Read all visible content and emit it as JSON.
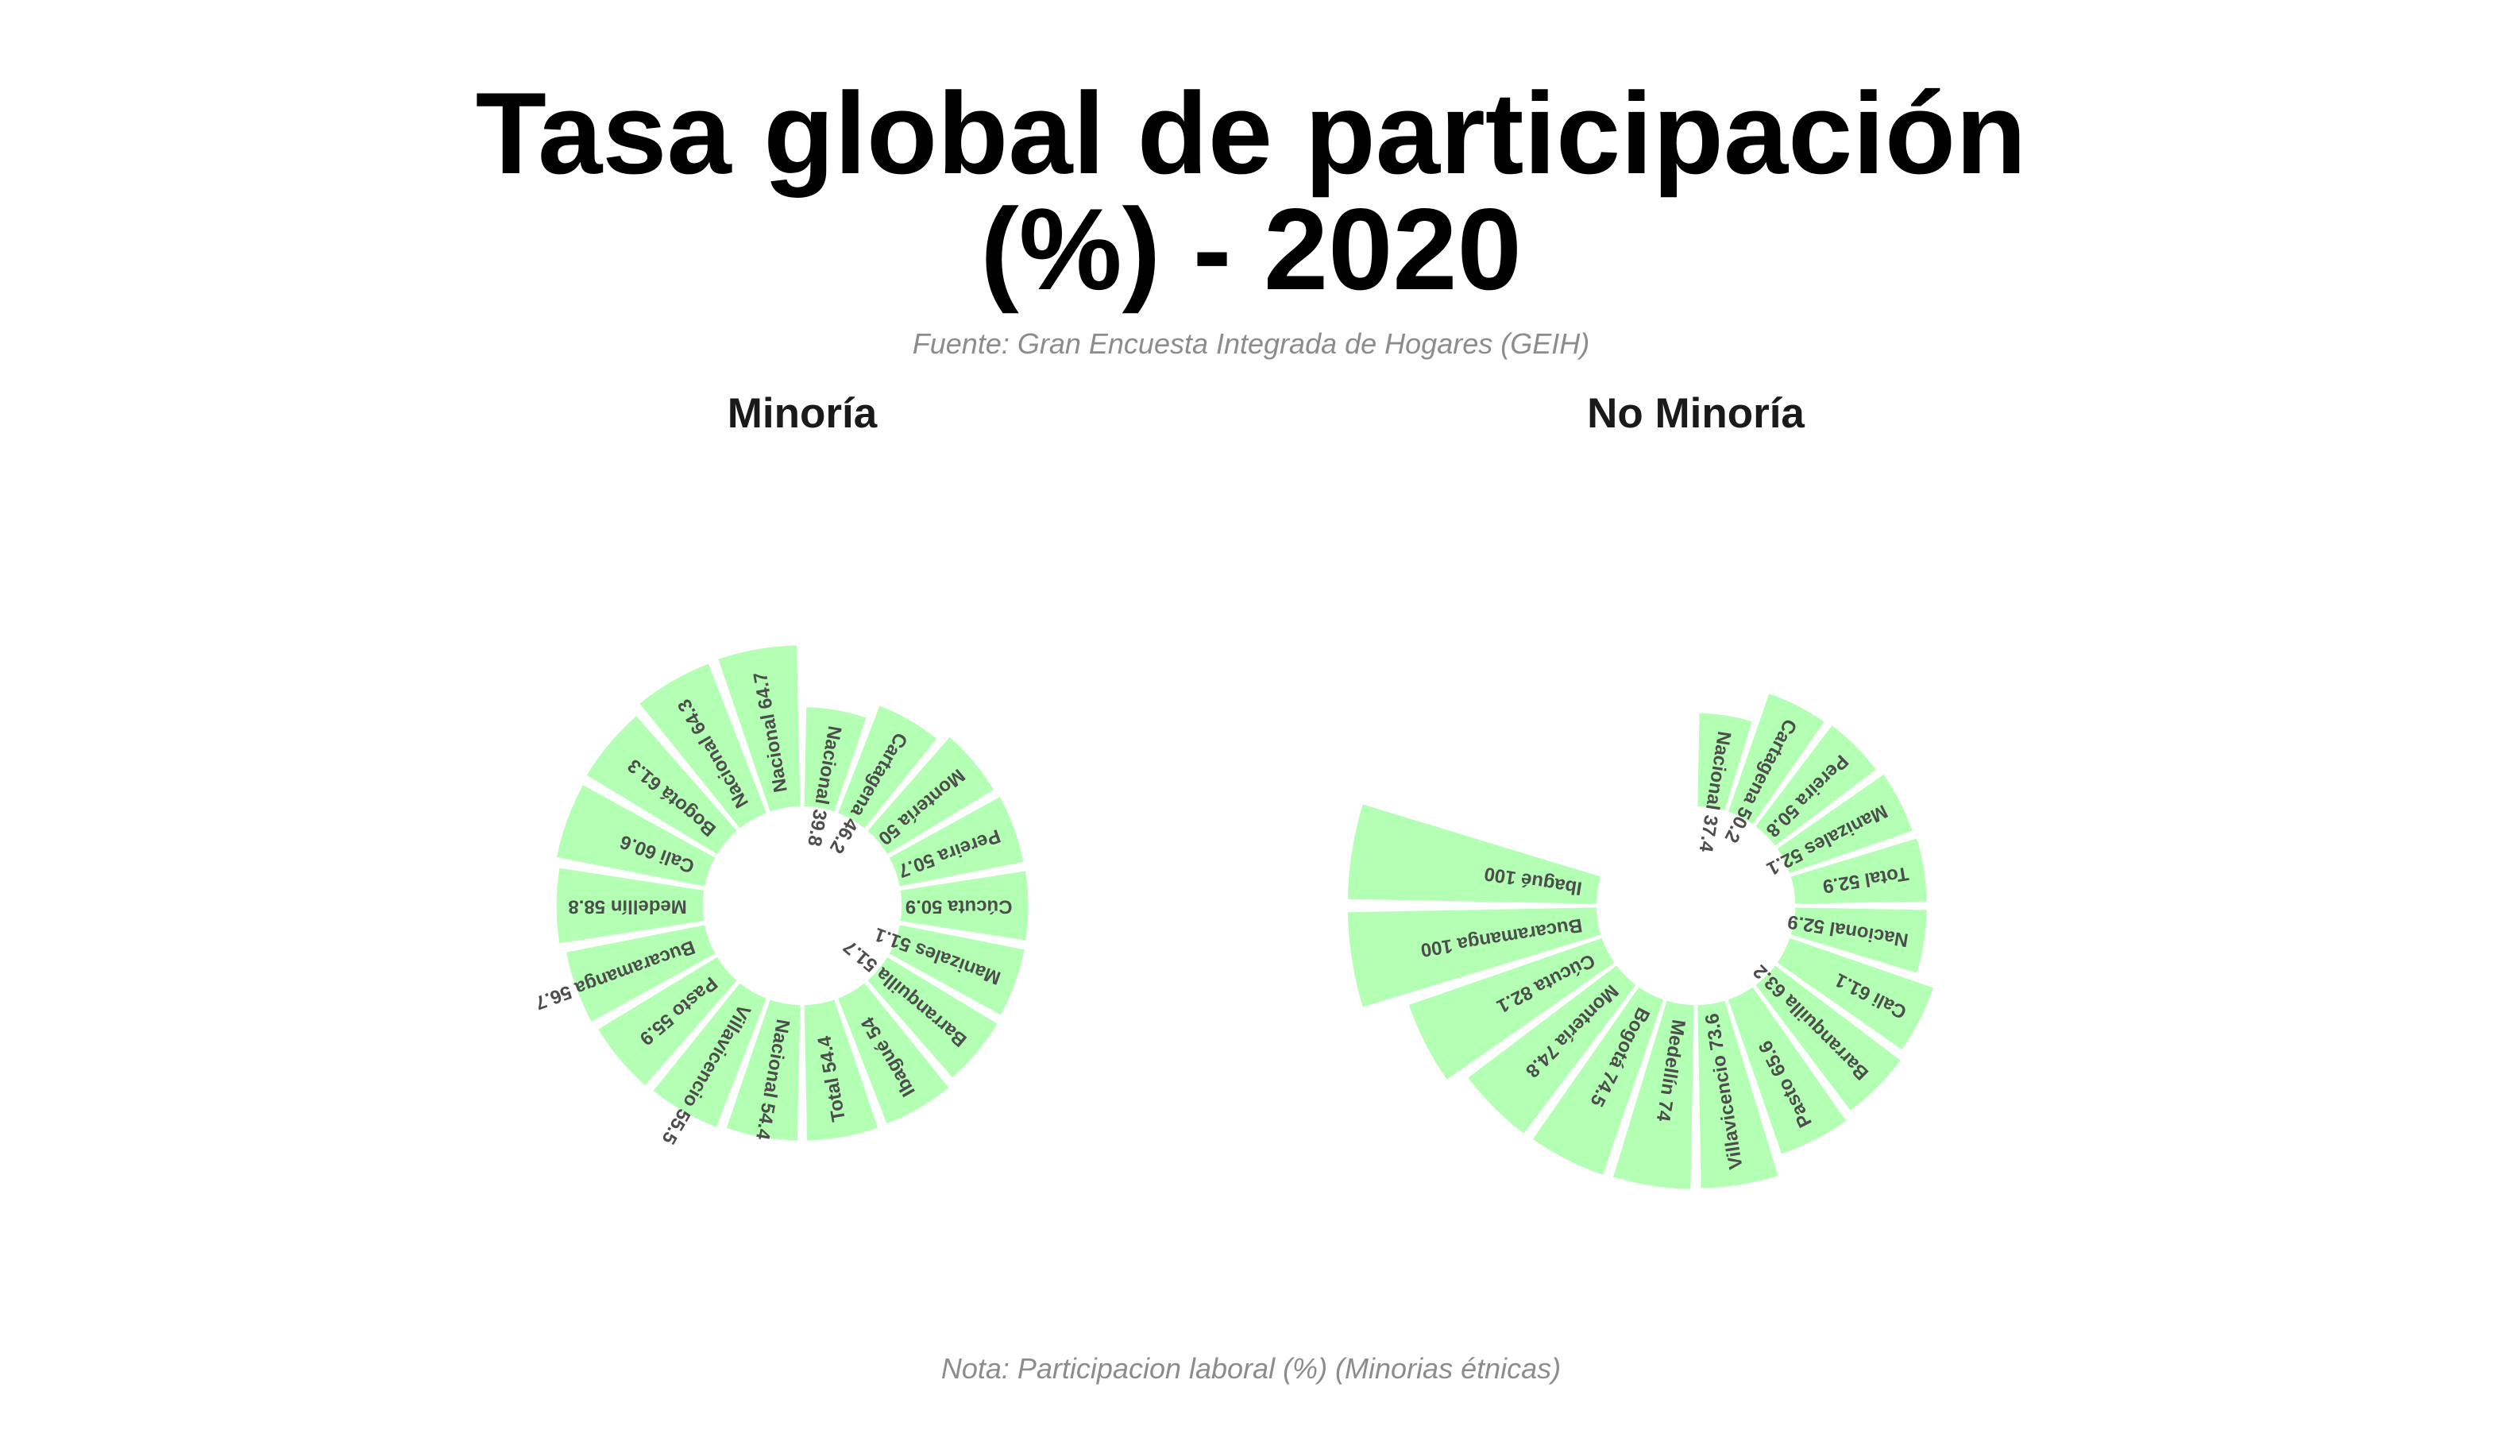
{
  "title_line1": "Tasa global de participación",
  "title_line2": "(%) - 2020",
  "subtitle": "Fuente: Gran Encuesta Integrada de Hogares (GEIH)",
  "caption": "Nota: Participacion laboral (%) (Minorias étnicas)",
  "colors": {
    "bar_fill": "#b3ffb3",
    "label_text": "#4d4d4d",
    "title": "#000000",
    "note": "#8c8c8c"
  },
  "chart_data": [
    {
      "type": "bar",
      "coord": "polar",
      "panel_title": "Minoría",
      "ylim": [
        -40,
        100
      ],
      "categories": [
        "Nacional",
        "Cartagena",
        "Montería",
        "Pereira",
        "Cúcuta",
        "Manizales",
        "Barranquilla",
        "Ibagué",
        "Total",
        "Nacional",
        "Villavicencio",
        "Pasto",
        "Bucaramanga",
        "Medellín",
        "Cali",
        "Bogotá",
        "Nacional",
        "Nacional"
      ],
      "values": [
        39.8,
        46.2,
        50,
        50.7,
        50.9,
        51.1,
        51.7,
        54,
        54.4,
        54.4,
        55.5,
        55.9,
        56.7,
        58.8,
        60.6,
        61.3,
        64.3,
        64.7
      ],
      "labels": [
        "Nacional 39.8",
        "Cartagena 46.2",
        "Montería 50",
        "Pereira 50.7",
        "Cúcuta 50.9",
        "Manizales 51.1",
        "Barranquilla 51.7",
        "Ibagué 54",
        "Total 54.4",
        "Nacional 54.4",
        "Villavicencio 55.5",
        "Pasto 55.9",
        "Bucaramanga 56.7",
        "Medellín 58.8",
        "Cali 60.6",
        "Bogotá 61.3",
        "Nacional 64.3",
        "Nacional 64.7"
      ]
    },
    {
      "type": "bar",
      "coord": "polar",
      "panel_title": "No Minoría",
      "ylim": [
        -40,
        100
      ],
      "categories": [
        "Nacional",
        "Cartagena",
        "Pereira",
        "Manizales",
        "Total",
        "Nacional",
        "Cali",
        "Barranquilla",
        "Pasto",
        "Villavicencio",
        "Medellín",
        "Bogotá",
        "Montería",
        "Cúcuta",
        "Bucaramanga",
        "Ibagué"
      ],
      "values": [
        37.4,
        50.2,
        50.8,
        52.1,
        52.9,
        52.9,
        61.1,
        63.2,
        65.6,
        73.6,
        74,
        74.5,
        74.8,
        82.1,
        100,
        100
      ],
      "labels": [
        "Nacional 37.4",
        "Cartagena 50.2",
        "Pereira 50.8",
        "Manizales 52.1",
        "Total 52.9",
        "Nacional 52.9",
        "Cali 61.1",
        "Barranquilla 63.2",
        "Pasto 65.6",
        "Villavicencio 73.6",
        "Medellín 74",
        "Bogotá 74.5",
        "Montería 74.8",
        "Cúcuta 82.1",
        "Bucaramanga 100",
        "Ibagué 100"
      ]
    }
  ]
}
